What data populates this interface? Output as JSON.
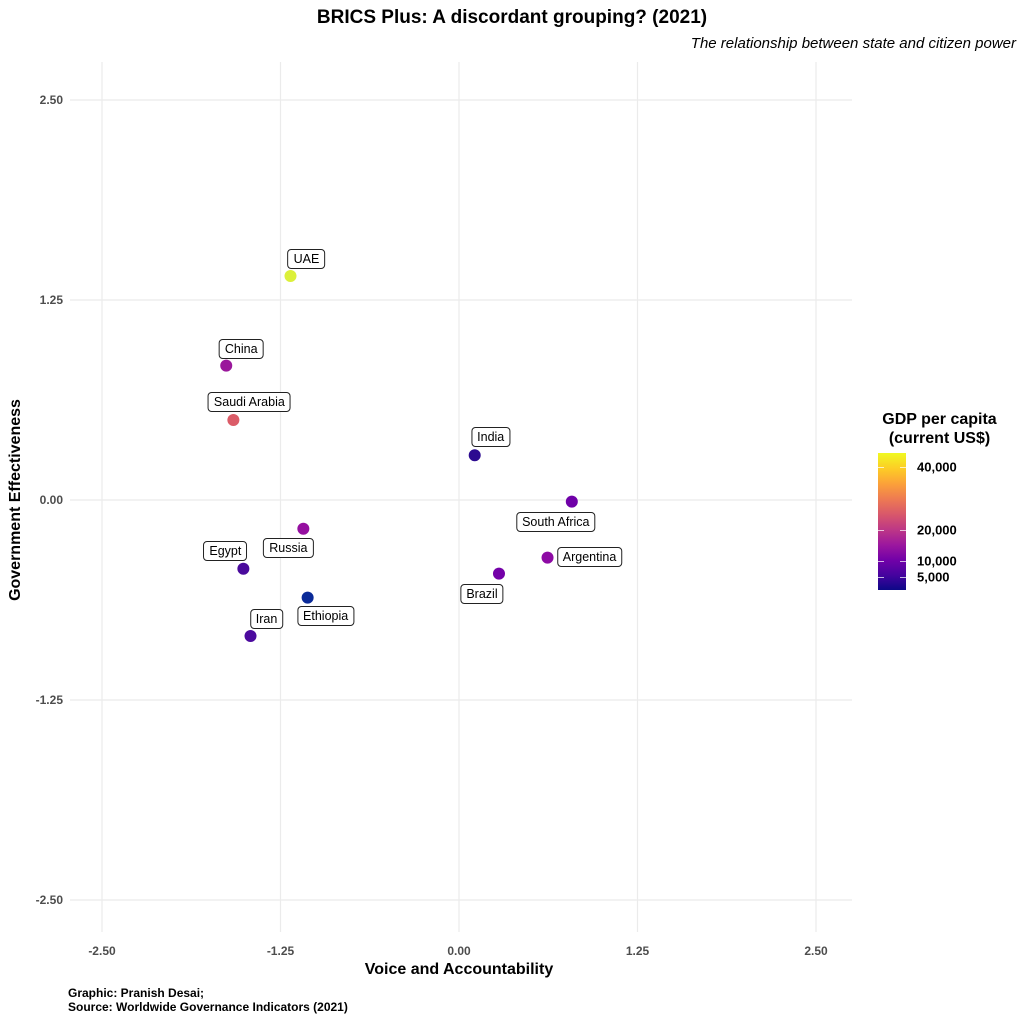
{
  "chart_data": {
    "type": "scatter",
    "title": "BRICS Plus: A discordant grouping? (2021)",
    "subtitle": "The relationship between state and citizen power",
    "xlabel": "Voice and Accountability",
    "ylabel": "Government Effectiveness",
    "xlim": [
      -2.5,
      2.5
    ],
    "ylim": [
      -2.5,
      2.5
    ],
    "xticks": [
      "-2.50",
      "-1.25",
      "0.00",
      "1.25",
      "2.50"
    ],
    "yticks": [
      "2.50",
      "1.25",
      "0.00",
      "-1.25",
      "-2.50"
    ],
    "xtick_values": [
      -2.5,
      -1.25,
      0,
      1.25,
      2.5
    ],
    "ytick_values": [
      2.5,
      1.25,
      0,
      -1.25,
      -2.5
    ],
    "grid": true,
    "legend": {
      "title_line1": "GDP per capita",
      "title_line2": "(current US$)",
      "placement": "right",
      "range": [
        925,
        44300
      ],
      "ticks": [
        "40,000",
        "20,000",
        "10,000",
        "5,000"
      ],
      "tick_values": [
        40000,
        20000,
        10000,
        5000
      ]
    },
    "points": [
      {
        "label": "UAE",
        "x": -1.18,
        "y": 1.4,
        "gdp": 44300,
        "color": "#dcf03a"
      },
      {
        "label": "China",
        "x": -1.63,
        "y": 0.84,
        "gdp": 12500,
        "color": "#9a179b"
      },
      {
        "label": "Saudi Arabia",
        "x": -1.58,
        "y": 0.5,
        "gdp": 23000,
        "color": "#db5c68"
      },
      {
        "label": "India",
        "x": 0.11,
        "y": 0.28,
        "gdp": 2250,
        "color": "#2c0a90"
      },
      {
        "label": "South Africa",
        "x": 0.79,
        "y": -0.01,
        "gdp": 7000,
        "color": "#6f00a8"
      },
      {
        "label": "Argentina",
        "x": 0.62,
        "y": -0.36,
        "gdp": 10600,
        "color": "#8d0aa4"
      },
      {
        "label": "Brazil",
        "x": 0.28,
        "y": -0.46,
        "gdp": 7500,
        "color": "#7401a8"
      },
      {
        "label": "Russia",
        "x": -1.09,
        "y": -0.18,
        "gdp": 12200,
        "color": "#950fa0"
      },
      {
        "label": "Egypt",
        "x": -1.51,
        "y": -0.43,
        "gdp": 3900,
        "color": "#4a0a9c"
      },
      {
        "label": "Ethiopia",
        "x": -1.06,
        "y": -0.61,
        "gdp": 925,
        "color": "#0a2a98"
      },
      {
        "label": "Iran",
        "x": -1.46,
        "y": -0.85,
        "gdp": 4100,
        "color": "#4c0a9e"
      }
    ]
  },
  "caption": {
    "line1": "Graphic: Pranish Desai;",
    "line2": "Source: Worldwide Governance Indicators (2021)"
  }
}
